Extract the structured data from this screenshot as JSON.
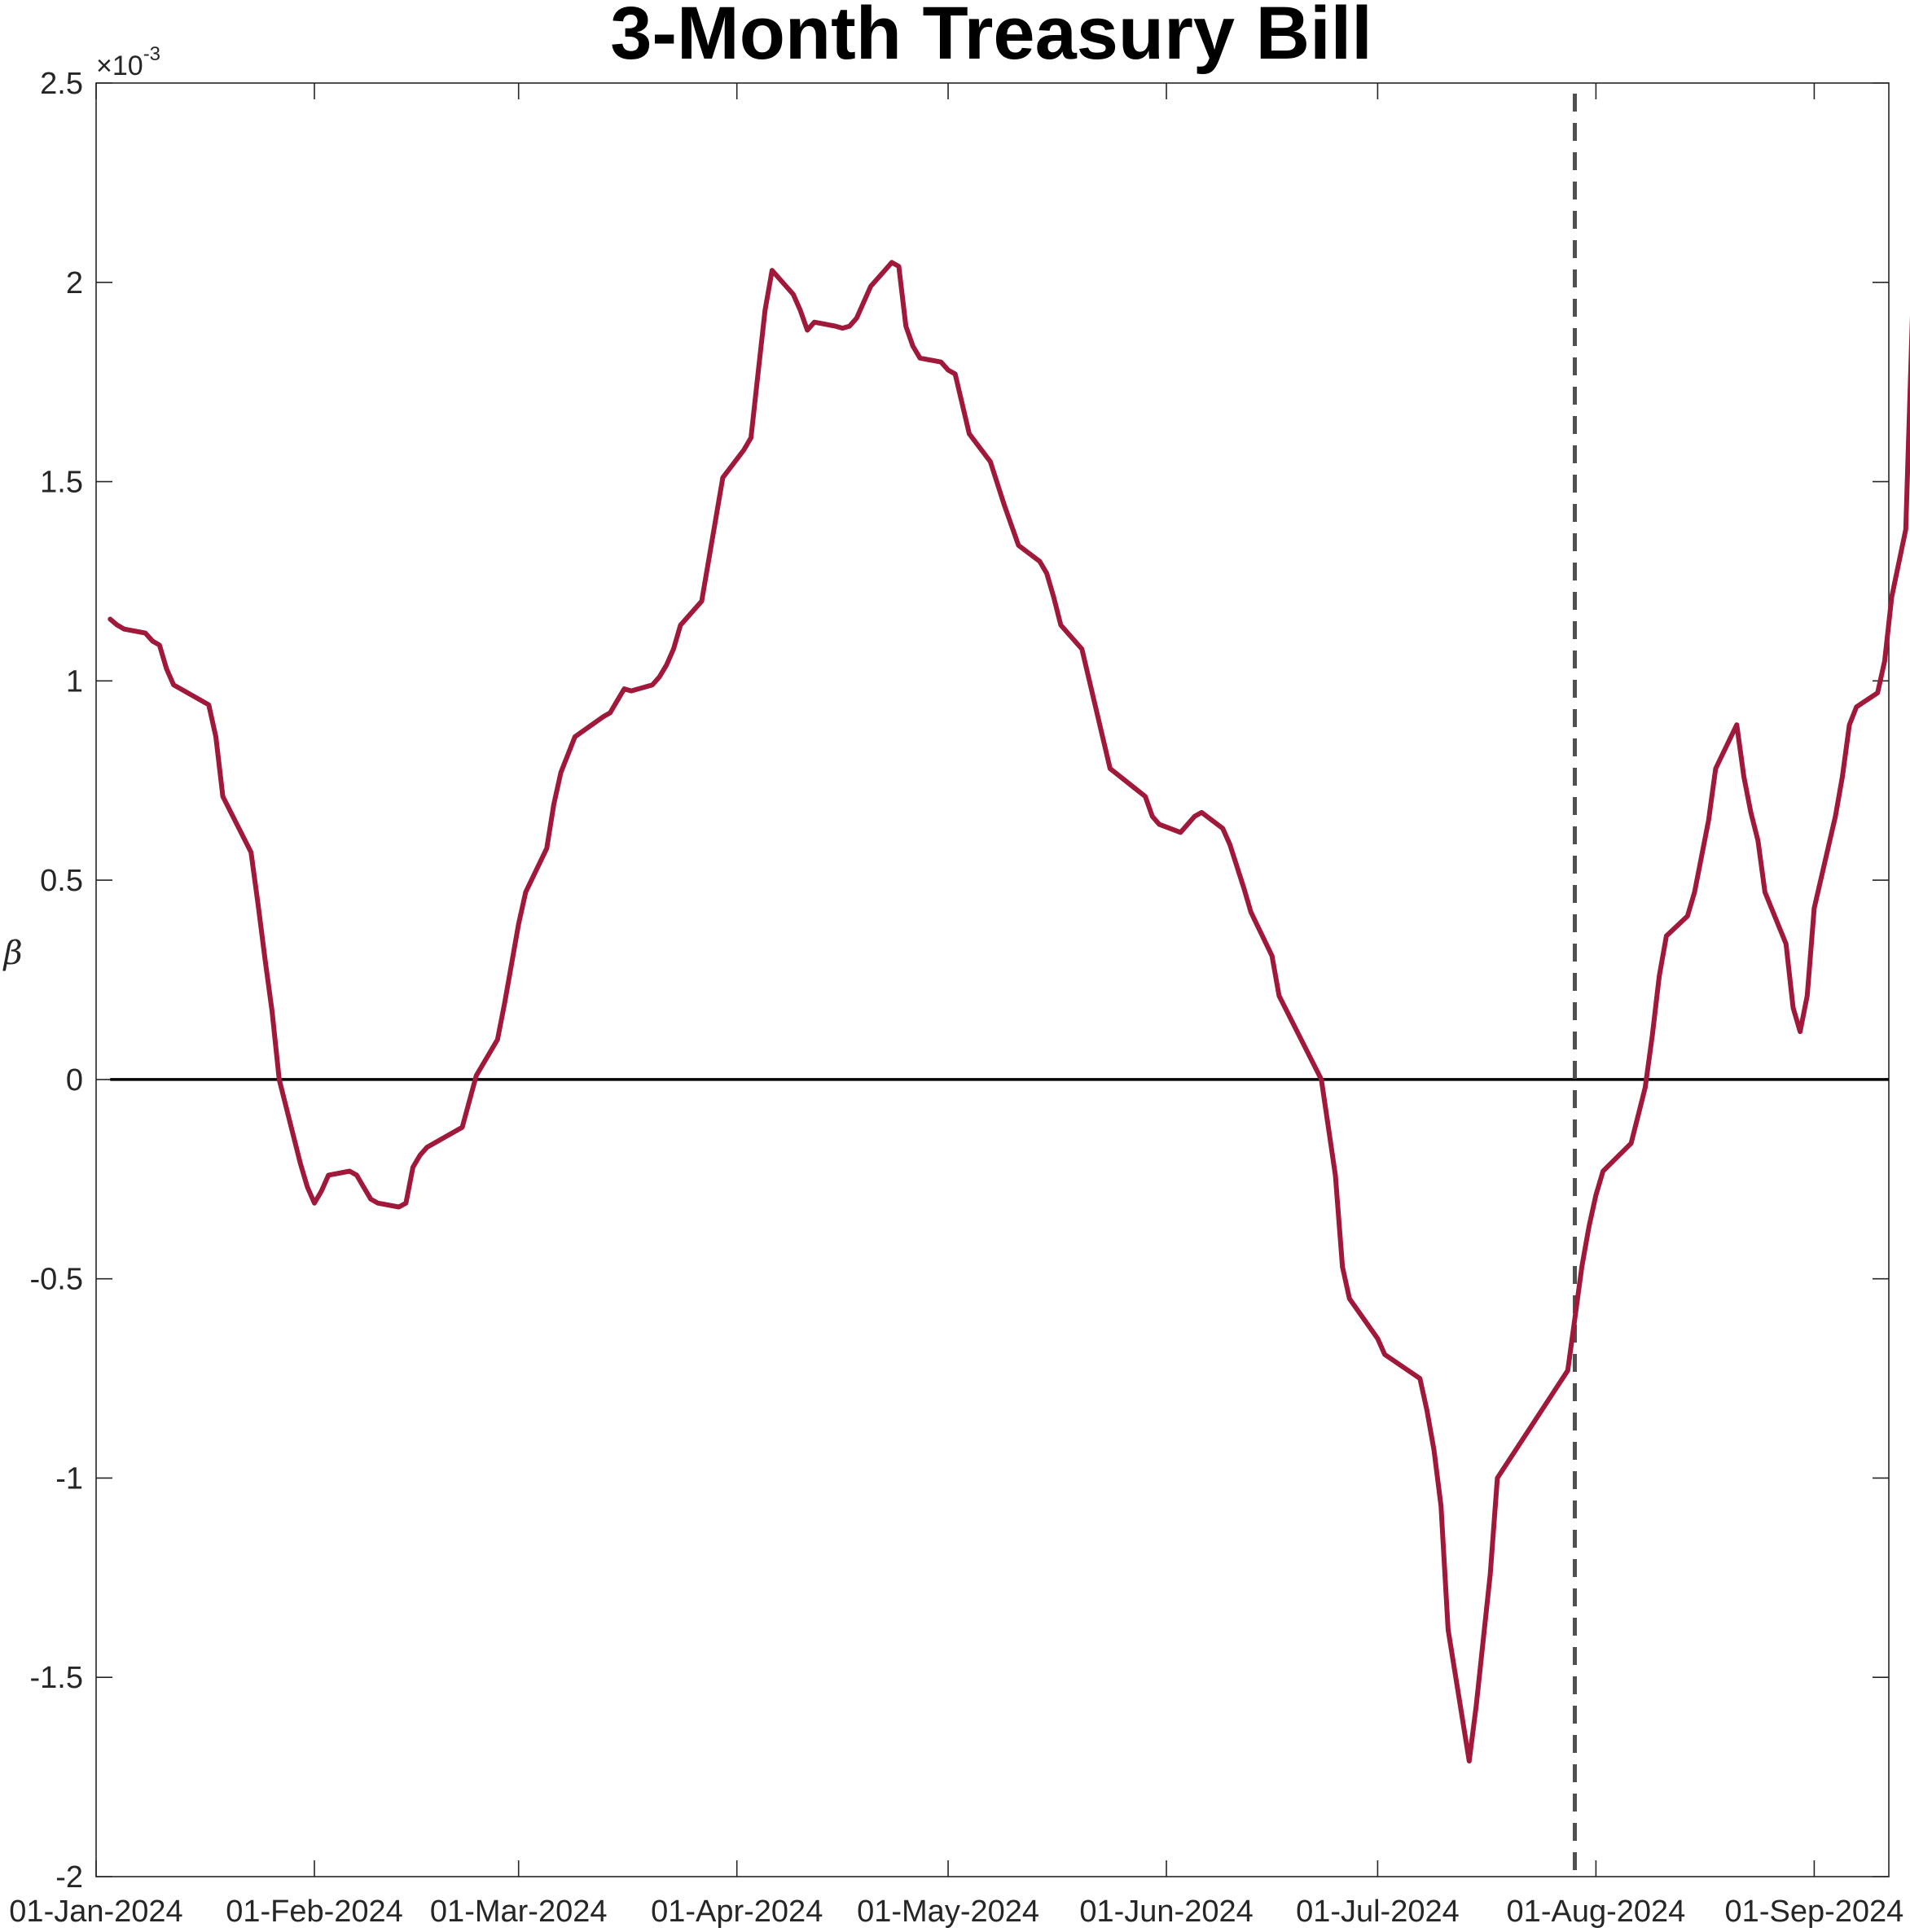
{
  "chart_data": {
    "type": "line",
    "title": "3-Month Treasury Bill",
    "ylabel": "β",
    "xlabel": "",
    "y_exponent": {
      "prefix": "×10",
      "power": "-3"
    },
    "ylim": [
      -2.0,
      2.5
    ],
    "xlim": [
      "2024-01-01",
      "2024-09-12"
    ],
    "yticks": [
      -2,
      -1.5,
      -1,
      -0.5,
      0,
      0.5,
      1,
      1.5,
      2,
      2.5
    ],
    "ytick_labels": [
      "-2",
      "-1.5",
      "-1",
      "-0.5",
      "0",
      "0.5",
      "1",
      "1.5",
      "2",
      "2.5"
    ],
    "xticks": [
      "2024-01-01",
      "2024-02-01",
      "2024-03-01",
      "2024-04-01",
      "2024-05-01",
      "2024-06-01",
      "2024-07-01",
      "2024-08-01",
      "2024-09-01"
    ],
    "xtick_labels": [
      "01-Jan-2024",
      "01-Feb-2024",
      "01-Mar-2024",
      "01-Apr-2024",
      "01-May-2024",
      "01-Jun-2024",
      "01-Jul-2024",
      "01-Aug-2024",
      "01-Sep-2024"
    ],
    "grid": false,
    "reference_line": {
      "y": 0,
      "color": "#000000"
    },
    "event_line": {
      "x": "2024-07-29",
      "style": "dashed",
      "color": "#505050"
    },
    "series": [
      {
        "color": "#a0183a",
        "points": [
          [
            "2024-01-03",
            1.155
          ],
          [
            "2024-01-04",
            1.14
          ],
          [
            "2024-01-05",
            1.13
          ],
          [
            "2024-01-08",
            1.12
          ],
          [
            "2024-01-09",
            1.1
          ],
          [
            "2024-01-10",
            1.09
          ],
          [
            "2024-01-11",
            1.03
          ],
          [
            "2024-01-12",
            0.99
          ],
          [
            "2024-01-17",
            0.94
          ],
          [
            "2024-01-18",
            0.86
          ],
          [
            "2024-01-19",
            0.71
          ],
          [
            "2024-01-23",
            0.57
          ],
          [
            "2024-01-24",
            0.44
          ],
          [
            "2024-01-25",
            0.3
          ],
          [
            "2024-01-26",
            0.17
          ],
          [
            "2024-01-27",
            0.0
          ],
          [
            "2024-01-30",
            -0.21
          ],
          [
            "2024-01-31",
            -0.27
          ],
          [
            "2024-02-01",
            -0.31
          ],
          [
            "2024-02-02",
            -0.28
          ],
          [
            "2024-02-03",
            -0.24
          ],
          [
            "2024-02-06",
            -0.23
          ],
          [
            "2024-02-07",
            -0.24
          ],
          [
            "2024-02-08",
            -0.27
          ],
          [
            "2024-02-09",
            -0.3
          ],
          [
            "2024-02-10",
            -0.31
          ],
          [
            "2024-02-13",
            -0.32
          ],
          [
            "2024-02-14",
            -0.31
          ],
          [
            "2024-02-15",
            -0.22
          ],
          [
            "2024-02-16",
            -0.19
          ],
          [
            "2024-02-17",
            -0.17
          ],
          [
            "2024-02-22",
            -0.12
          ],
          [
            "2024-02-24",
            0.01
          ],
          [
            "2024-02-27",
            0.1
          ],
          [
            "2024-02-28",
            0.19
          ],
          [
            "2024-02-29",
            0.29
          ],
          [
            "2024-03-01",
            0.39
          ],
          [
            "2024-03-02",
            0.47
          ],
          [
            "2024-03-05",
            0.58
          ],
          [
            "2024-03-06",
            0.69
          ],
          [
            "2024-03-07",
            0.77
          ],
          [
            "2024-03-09",
            0.86
          ],
          [
            "2024-03-13",
            0.91
          ],
          [
            "2024-03-14",
            0.92
          ],
          [
            "2024-03-15",
            0.95
          ],
          [
            "2024-03-16",
            0.98
          ],
          [
            "2024-03-17",
            0.975
          ],
          [
            "2024-03-20",
            0.99
          ],
          [
            "2024-03-21",
            1.01
          ],
          [
            "2024-03-22",
            1.04
          ],
          [
            "2024-03-23",
            1.08
          ],
          [
            "2024-03-24",
            1.14
          ],
          [
            "2024-03-27",
            1.2
          ],
          [
            "2024-03-30",
            1.51
          ],
          [
            "2024-04-02",
            1.58
          ],
          [
            "2024-04-03",
            1.61
          ],
          [
            "2024-04-04",
            1.77
          ],
          [
            "2024-04-05",
            1.93
          ],
          [
            "2024-04-06",
            2.03
          ],
          [
            "2024-04-08",
            1.99
          ],
          [
            "2024-04-09",
            1.97
          ],
          [
            "2024-04-10",
            1.93
          ],
          [
            "2024-04-11",
            1.88
          ],
          [
            "2024-04-12",
            1.9
          ],
          [
            "2024-04-15",
            1.89
          ],
          [
            "2024-04-16",
            1.885
          ],
          [
            "2024-04-17",
            1.89
          ],
          [
            "2024-04-18",
            1.91
          ],
          [
            "2024-04-20",
            1.99
          ],
          [
            "2024-04-22",
            2.03
          ],
          [
            "2024-04-23",
            2.05
          ],
          [
            "2024-04-24",
            2.04
          ],
          [
            "2024-04-25",
            1.89
          ],
          [
            "2024-04-26",
            1.84
          ],
          [
            "2024-04-27",
            1.81
          ],
          [
            "2024-04-30",
            1.8
          ],
          [
            "2024-05-01",
            1.78
          ],
          [
            "2024-05-02",
            1.77
          ],
          [
            "2024-05-04",
            1.62
          ],
          [
            "2024-05-07",
            1.55
          ],
          [
            "2024-05-09",
            1.44
          ],
          [
            "2024-05-11",
            1.34
          ],
          [
            "2024-05-14",
            1.3
          ],
          [
            "2024-05-15",
            1.27
          ],
          [
            "2024-05-16",
            1.21
          ],
          [
            "2024-05-17",
            1.14
          ],
          [
            "2024-05-20",
            1.08
          ],
          [
            "2024-05-22",
            0.93
          ],
          [
            "2024-05-24",
            0.78
          ],
          [
            "2024-05-29",
            0.71
          ],
          [
            "2024-05-30",
            0.66
          ],
          [
            "2024-05-31",
            0.64
          ],
          [
            "2024-06-03",
            0.62
          ],
          [
            "2024-06-04",
            0.64
          ],
          [
            "2024-06-05",
            0.66
          ],
          [
            "2024-06-06",
            0.67
          ],
          [
            "2024-06-09",
            0.63
          ],
          [
            "2024-06-10",
            0.59
          ],
          [
            "2024-06-12",
            0.48
          ],
          [
            "2024-06-13",
            0.42
          ],
          [
            "2024-06-16",
            0.31
          ],
          [
            "2024-06-17",
            0.21
          ],
          [
            "2024-06-19",
            0.14
          ],
          [
            "2024-06-23",
            0.0
          ],
          [
            "2024-06-25",
            -0.24
          ],
          [
            "2024-06-26",
            -0.47
          ],
          [
            "2024-06-27",
            -0.55
          ],
          [
            "2024-07-01",
            -0.65
          ],
          [
            "2024-07-02",
            -0.69
          ],
          [
            "2024-07-07",
            -0.75
          ],
          [
            "2024-07-08",
            -0.83
          ],
          [
            "2024-07-09",
            -0.93
          ],
          [
            "2024-07-10",
            -1.07
          ],
          [
            "2024-07-11",
            -1.38
          ],
          [
            "2024-07-14",
            -1.71
          ],
          [
            "2024-07-15",
            -1.57
          ],
          [
            "2024-07-17",
            -1.24
          ],
          [
            "2024-07-18",
            -1.0
          ],
          [
            "2024-07-28",
            -0.73
          ],
          [
            "2024-07-29",
            -0.6
          ],
          [
            "2024-07-30",
            -0.47
          ],
          [
            "2024-07-31",
            -0.37
          ],
          [
            "2024-08-01",
            -0.29
          ],
          [
            "2024-08-02",
            -0.23
          ],
          [
            "2024-08-06",
            -0.16
          ],
          [
            "2024-08-07",
            -0.09
          ],
          [
            "2024-08-08",
            -0.02
          ],
          [
            "2024-08-09",
            0.11
          ],
          [
            "2024-08-10",
            0.26
          ],
          [
            "2024-08-11",
            0.36
          ],
          [
            "2024-08-14",
            0.41
          ],
          [
            "2024-08-15",
            0.47
          ],
          [
            "2024-08-17",
            0.65
          ],
          [
            "2024-08-18",
            0.78
          ],
          [
            "2024-08-21",
            0.89
          ],
          [
            "2024-08-22",
            0.76
          ],
          [
            "2024-08-23",
            0.67
          ],
          [
            "2024-08-24",
            0.6
          ],
          [
            "2024-08-25",
            0.47
          ],
          [
            "2024-08-28",
            0.34
          ],
          [
            "2024-08-29",
            0.18
          ],
          [
            "2024-08-30",
            0.12
          ],
          [
            "2024-08-31",
            0.21
          ],
          [
            "2024-09-01",
            0.43
          ],
          [
            "2024-09-04",
            0.66
          ],
          [
            "2024-09-05",
            0.76
          ],
          [
            "2024-09-06",
            0.89
          ],
          [
            "2024-09-07",
            0.935
          ],
          [
            "2024-09-10",
            0.97
          ],
          [
            "2024-09-11",
            1.05
          ],
          [
            "2024-09-12",
            1.21
          ],
          [
            "2024-09-14",
            1.38
          ],
          [
            "2024-09-15",
            1.95
          ],
          [
            "2024-09-16",
            2.0
          ],
          [
            "2024-09-17",
            1.995
          ]
        ]
      }
    ]
  }
}
